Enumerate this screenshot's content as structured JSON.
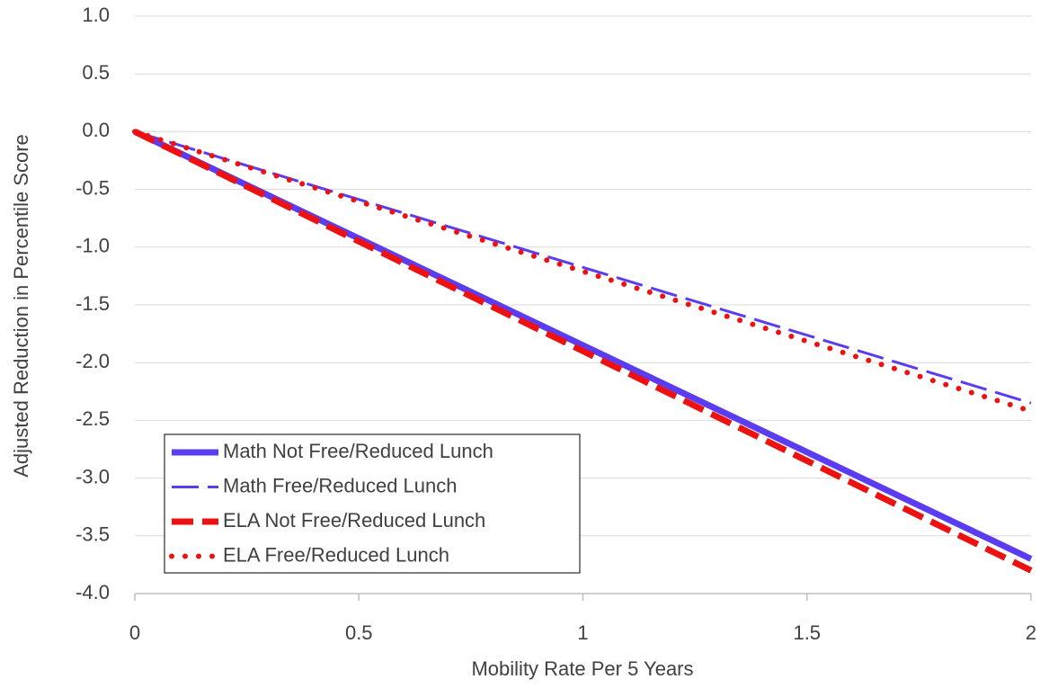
{
  "chart_data": {
    "type": "line",
    "x_label": "Mobility Rate Per 5 Years",
    "y_label": "Adjusted Reduction in Percentile Score",
    "x": [
      0,
      2
    ],
    "series": [
      {
        "name": "Math Not Free/Reduced Lunch",
        "color": "#5b3cf0",
        "line_style": "solid",
        "line_width": 7,
        "values": [
          0,
          -3.7
        ]
      },
      {
        "name": "Math Free/Reduced Lunch",
        "color": "#5b3cf0",
        "line_style": "dashed",
        "line_width": 3,
        "values": [
          0,
          -2.35
        ]
      },
      {
        "name": "ELA Not Free/Reduced Lunch",
        "color": "#ee1111",
        "line_style": "dashed",
        "line_width": 7,
        "values": [
          0,
          -3.8
        ]
      },
      {
        "name": "ELA Free/Reduced Lunch",
        "color": "#ee1111",
        "line_style": "dotted",
        "line_width": 6,
        "values": [
          0,
          -2.42
        ]
      }
    ],
    "xlim": [
      0,
      2
    ],
    "xticks": [
      0,
      0.5,
      1,
      1.5,
      2
    ],
    "ylim": [
      -4,
      1
    ],
    "yticks": [
      {
        "value": -4,
        "label": "-4.0"
      },
      {
        "value": -3.5,
        "label": "-3.5"
      },
      {
        "value": -3,
        "label": "-3.0"
      },
      {
        "value": -2.5,
        "label": "-2.5"
      },
      {
        "value": -2,
        "label": "-2.0"
      },
      {
        "value": -1.5,
        "label": "-1.5"
      },
      {
        "value": -1,
        "label": "-1.0"
      },
      {
        "value": -0.5,
        "label": "-0.5"
      },
      {
        "value": 0,
        "label": "0.0"
      },
      {
        "value": 0.5,
        "label": "0.5"
      },
      {
        "value": 1,
        "label": "1.0"
      }
    ],
    "grid": true,
    "legend_position": "lower-left"
  }
}
